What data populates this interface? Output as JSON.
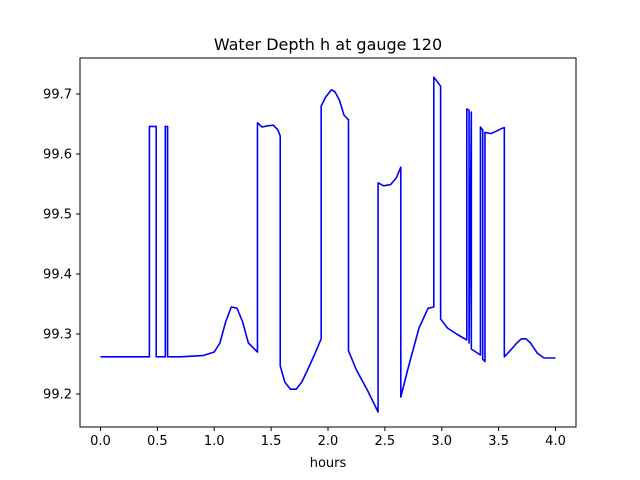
{
  "chart_data": {
    "type": "line",
    "title": "Water Depth h at gauge 120",
    "xlabel": "hours",
    "ylabel": "",
    "xlim": [
      -0.18,
      4.18
    ],
    "ylim": [
      99.145,
      99.76
    ],
    "xticks": [
      0.0,
      0.5,
      1.0,
      1.5,
      2.0,
      2.5,
      3.0,
      3.5,
      4.0
    ],
    "xtick_labels": [
      "0.0",
      "0.5",
      "1.0",
      "1.5",
      "2.0",
      "2.5",
      "3.0",
      "3.5",
      "4.0"
    ],
    "yticks": [
      99.2,
      99.3,
      99.4,
      99.5,
      99.6,
      99.7
    ],
    "ytick_labels": [
      "99.2",
      "99.3",
      "99.4",
      "99.5",
      "99.6",
      "99.7"
    ],
    "grid": false,
    "series": [
      {
        "name": "",
        "color": "#0000ff",
        "x": [
          0.0,
          0.43,
          0.43,
          0.49,
          0.49,
          0.57,
          0.57,
          0.59,
          0.59,
          0.7,
          0.9,
          1.0,
          1.05,
          1.1,
          1.15,
          1.2,
          1.25,
          1.3,
          1.38,
          1.38,
          1.42,
          1.47,
          1.52,
          1.56,
          1.58,
          1.58,
          1.62,
          1.67,
          1.72,
          1.77,
          1.82,
          1.88,
          1.94,
          1.94,
          1.98,
          2.03,
          2.06,
          2.1,
          2.14,
          2.18,
          2.18,
          2.25,
          2.35,
          2.44,
          2.44,
          2.49,
          2.55,
          2.6,
          2.64,
          2.64,
          2.7,
          2.8,
          2.88,
          2.93,
          2.93,
          2.99,
          2.99,
          3.05,
          3.13,
          3.22,
          3.22,
          3.24,
          3.24,
          3.26,
          3.26,
          3.34,
          3.34,
          3.36,
          3.36,
          3.38,
          3.38,
          3.43,
          3.48,
          3.52,
          3.55,
          3.55,
          3.6,
          3.66,
          3.7,
          3.74,
          3.78,
          3.84,
          3.9,
          4.0
        ],
        "y": [
          99.262,
          99.262,
          99.646,
          99.646,
          99.262,
          99.262,
          99.646,
          99.646,
          99.262,
          99.262,
          99.264,
          99.27,
          99.285,
          99.32,
          99.345,
          99.343,
          99.32,
          99.285,
          99.27,
          99.652,
          99.645,
          99.647,
          99.648,
          99.64,
          99.63,
          99.247,
          99.22,
          99.208,
          99.208,
          99.22,
          99.24,
          99.265,
          99.292,
          99.68,
          99.695,
          99.707,
          99.704,
          99.69,
          99.665,
          99.657,
          99.272,
          99.24,
          99.205,
          99.17,
          99.552,
          99.547,
          99.549,
          99.56,
          99.578,
          99.195,
          99.24,
          99.31,
          99.343,
          99.345,
          99.728,
          99.713,
          99.325,
          99.31,
          99.3,
          99.29,
          99.675,
          99.673,
          99.285,
          99.67,
          99.275,
          99.265,
          99.645,
          99.64,
          99.258,
          99.254,
          99.636,
          99.634,
          99.638,
          99.642,
          99.644,
          99.262,
          99.272,
          99.285,
          99.292,
          99.292,
          99.285,
          99.268,
          99.26,
          99.26
        ]
      }
    ]
  }
}
